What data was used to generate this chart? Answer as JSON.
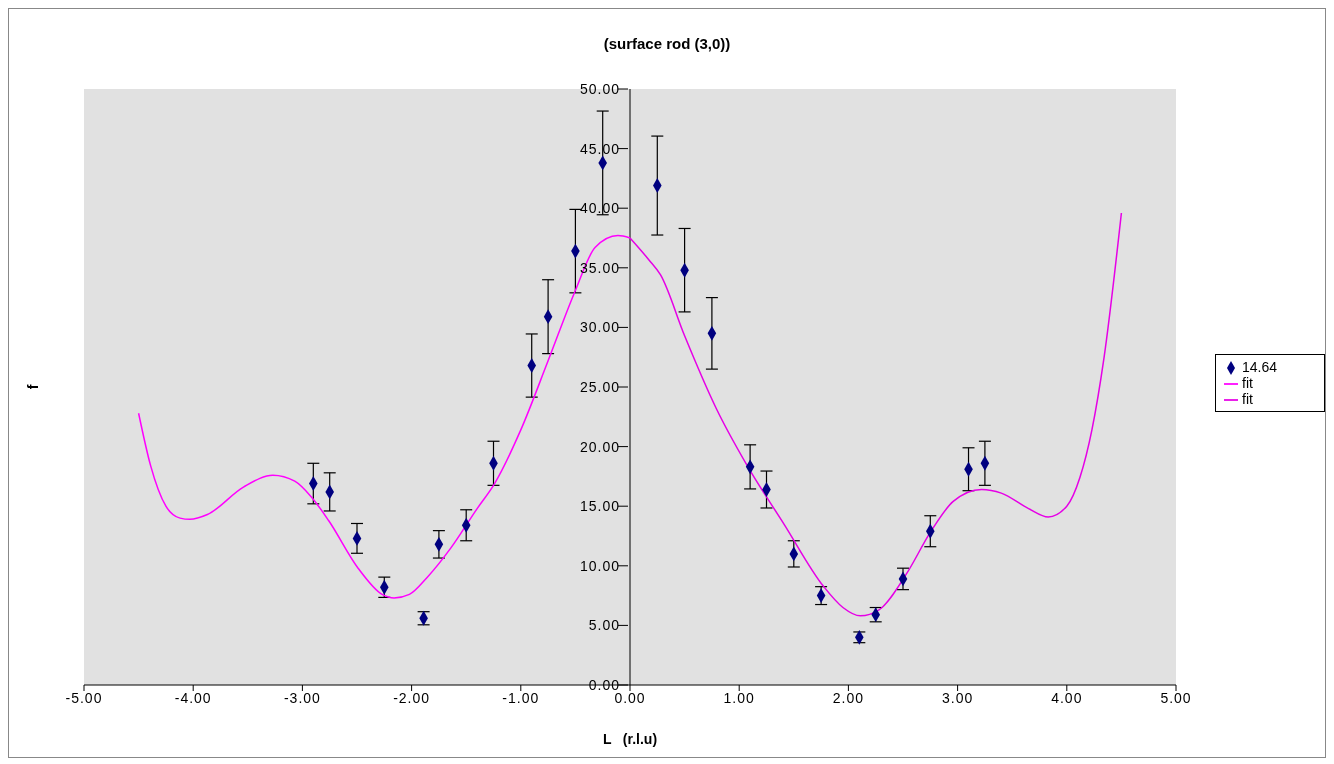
{
  "chart_data": {
    "type": "scatter",
    "title": "(surface rod (3,0))",
    "xlabel": "L   (r.l.u)",
    "ylabel": "f",
    "xlim": [
      -5,
      5
    ],
    "ylim": [
      0,
      50
    ],
    "xticks": [
      {
        "value": -5,
        "label": "-5.00"
      },
      {
        "value": -4,
        "label": "-4.00"
      },
      {
        "value": -3,
        "label": "-3.00"
      },
      {
        "value": -2,
        "label": "-2.00"
      },
      {
        "value": -1,
        "label": "-1.00"
      },
      {
        "value": 0,
        "label": "0.00"
      },
      {
        "value": 1,
        "label": "1.00"
      },
      {
        "value": 2,
        "label": "2.00"
      },
      {
        "value": 3,
        "label": "3.00"
      },
      {
        "value": 4,
        "label": "4.00"
      },
      {
        "value": 5,
        "label": "5.00"
      }
    ],
    "yticks": [
      {
        "value": 0,
        "label": "0.00"
      },
      {
        "value": 5,
        "label": "5.00"
      },
      {
        "value": 10,
        "label": "10.00"
      },
      {
        "value": 15,
        "label": "15.00"
      },
      {
        "value": 20,
        "label": "20.00"
      },
      {
        "value": 25,
        "label": "25.00"
      },
      {
        "value": 30,
        "label": "30.00"
      },
      {
        "value": 35,
        "label": "35.00"
      },
      {
        "value": 40,
        "label": "40.00"
      },
      {
        "value": 45,
        "label": "45.00"
      },
      {
        "value": 50,
        "label": "50.00"
      }
    ],
    "grid": false,
    "legend": "right",
    "marker": "diamond",
    "series": [
      {
        "name": "14.64",
        "color": "#000080",
        "x": [
          -2.9,
          -2.75,
          -2.5,
          -2.25,
          -1.89,
          -1.75,
          -1.5,
          -1.25,
          -0.9,
          -0.75,
          -0.5,
          -0.25,
          0.25,
          0.5,
          0.75,
          1.1,
          1.25,
          1.5,
          1.75,
          2.1,
          2.25,
          2.5,
          2.75,
          3.1,
          3.25
        ],
        "values": [
          16.9,
          16.2,
          12.3,
          8.2,
          5.6,
          11.8,
          13.4,
          18.6,
          26.8,
          30.9,
          36.4,
          43.8,
          41.9,
          34.8,
          29.5,
          18.3,
          16.4,
          11.0,
          7.5,
          4.0,
          5.9,
          8.9,
          12.9,
          18.1,
          18.6
        ],
        "errors": [
          1.7,
          1.6,
          1.25,
          0.85,
          0.55,
          1.15,
          1.3,
          1.85,
          2.65,
          3.1,
          3.5,
          4.35,
          4.15,
          3.5,
          3.0,
          1.85,
          1.55,
          1.1,
          0.75,
          0.45,
          0.6,
          0.9,
          1.3,
          1.8,
          1.85
        ]
      },
      {
        "name": "fit",
        "type": "line",
        "color": "#ff00ff",
        "marker": "none",
        "x": [
          -4.5,
          -4.39,
          -4.25,
          -4.12,
          -4.03,
          -3.87,
          -3.54,
          -3.27,
          -3.07,
          -2.92,
          -2.76,
          -2.49,
          -2.27,
          -2.16,
          -2.02,
          -1.86,
          -1.64,
          -1.4,
          -1.24,
          -1.0,
          -0.75,
          -0.5,
          -0.32,
          -0.11,
          0
        ],
        "values": [
          22.8,
          18.4,
          15.0,
          14.0,
          13.9,
          14.3,
          16.6,
          17.6,
          17.1,
          15.8,
          13.8,
          9.8,
          7.6,
          7.3,
          7.6,
          9.0,
          11.5,
          14.8,
          16.9,
          21.4,
          27.2,
          33.1,
          36.7,
          37.7,
          37.5
        ]
      },
      {
        "name": "fit",
        "type": "line",
        "color": "#e600e6",
        "marker": "none",
        "x": [
          0,
          0.17,
          0.28,
          0.5,
          0.79,
          1.08,
          1.41,
          1.77,
          1.95,
          2.11,
          2.28,
          2.53,
          2.75,
          2.96,
          3.22,
          3.4,
          3.65,
          3.83,
          4.0,
          4.12,
          4.23,
          4.34,
          4.5
        ],
        "values": [
          37.5,
          35.7,
          34.4,
          29.3,
          23.2,
          18.3,
          13.5,
          8.3,
          6.5,
          5.8,
          6.3,
          9.3,
          12.8,
          15.4,
          16.4,
          16.1,
          14.8,
          14.1,
          15.0,
          17.4,
          21.4,
          27.4,
          39.6
        ]
      }
    ]
  }
}
